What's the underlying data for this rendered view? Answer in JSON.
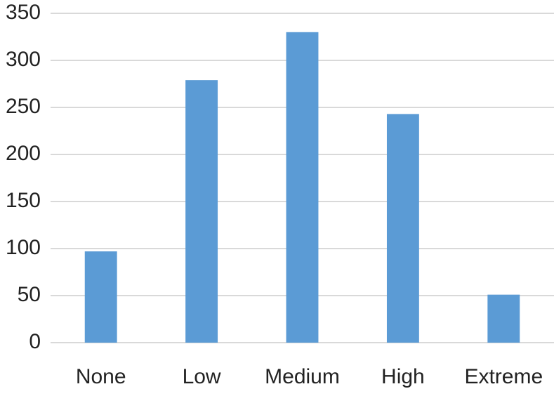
{
  "chart_data": {
    "type": "bar",
    "categories": [
      "None",
      "Low",
      "Medium",
      "High",
      "Extreme"
    ],
    "values": [
      97,
      279,
      330,
      243,
      51
    ],
    "color": "#5b9bd5",
    "ylim": [
      0,
      350
    ],
    "yticks": [
      0,
      50,
      100,
      150,
      200,
      250,
      300,
      350
    ],
    "grid": true
  }
}
